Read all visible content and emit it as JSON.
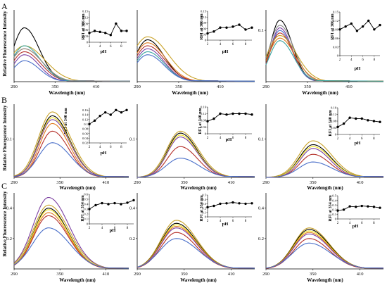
{
  "rows": [
    {
      "label": "A",
      "xlabel": "Wavelength (nm)",
      "ylabel": "Relative Fluorescence Intensity",
      "insets": [
        {
          "ylabel": "RFI at 306 nm",
          "xlabel": "pH",
          "xticks": [
            "2",
            "4",
            "6",
            "8"
          ],
          "yticks": [
            "0",
            "0.03",
            "0.06",
            "0.09",
            "0.12",
            "0.15"
          ]
        },
        {
          "ylabel": "RFI at 306 nm",
          "xlabel": "pH",
          "xticks": [
            "2",
            "4",
            "6",
            "8"
          ],
          "yticks": [
            "0",
            "0.03",
            "0.06",
            "0.09",
            "0.12",
            "0.15"
          ]
        },
        {
          "ylabel": "RFI at 306 nm",
          "xlabel": "pH",
          "xticks": [
            "2",
            "4",
            "6",
            "8"
          ],
          "yticks": [
            "0",
            "0.03",
            "0.06",
            "0.09",
            "0.12",
            "0.15"
          ]
        }
      ]
    },
    {
      "label": "B",
      "xlabel": "Wavelength (nm)",
      "ylabel": "Relative Fluorescence Intensity",
      "insets": [
        {
          "ylabel": "RFI at 340 nm",
          "xlabel": "pH",
          "xticks": [
            "2",
            "4",
            "6",
            "8"
          ],
          "yticks": [
            "0.02",
            "0.04",
            "0.06",
            "0.08",
            "0.1",
            "0.12",
            "0.14",
            "0.16"
          ]
        },
        {
          "ylabel": "RFI at 340 nm",
          "xlabel": "pH",
          "xticks": [
            "2",
            "4",
            "6",
            "8"
          ],
          "yticks": [
            "0",
            "0.04",
            "0.08",
            "0.12",
            "0.16"
          ]
        },
        {
          "ylabel": "RFI at 340 nm",
          "xlabel": "pH",
          "xticks": [
            "2",
            "4",
            "6",
            "8"
          ],
          "yticks": [
            "0",
            "0.04",
            "0.08",
            "0.12",
            "0.16"
          ]
        }
      ]
    },
    {
      "label": "C",
      "xlabel": "Wavelength (nm)",
      "ylabel": "Relative Fluorescence Intensity",
      "insets": [
        {
          "ylabel": "RFI at 334 nm",
          "xlabel": "pH",
          "xticks": [
            "2",
            "4",
            "6",
            "8"
          ],
          "yticks": [
            "0",
            "0.1",
            "0.2",
            "0.3",
            "0.4",
            "0.5",
            "0.6"
          ]
        },
        {
          "ylabel": "RFI at 334 nm",
          "xlabel": "pH",
          "xticks": [
            "2",
            "4",
            "6",
            "8"
          ],
          "yticks": [
            "0",
            "0.1",
            "0.2",
            "0.3",
            "0.4",
            "0.5"
          ]
        },
        {
          "ylabel": "RFI at 334 nm",
          "xlabel": "pH",
          "xticks": [
            "2",
            "4",
            "6",
            "8"
          ],
          "yticks": [
            "0",
            "0.1",
            "0.2",
            "0.3",
            "0.4",
            "0.5"
          ]
        }
      ]
    }
  ],
  "colors": {
    "black": "#000000",
    "yellow": "#f0e21c",
    "gold": "#c9a227",
    "orange": "#e07b1f",
    "red": "#b5302a",
    "purple": "#7b3fa0",
    "blue": "#4a6fc9",
    "teal": "#3aa5a0",
    "gray": "#8a8a8a",
    "darkred": "#8b1a1a"
  },
  "chart_data": [
    {
      "panel": "A1",
      "type": "line",
      "xlabel": "Wavelength (nm)",
      "ylabel": "Relative Fluorescence Intensity",
      "xticks": [
        290,
        350,
        410
      ],
      "xlim": [
        290,
        460
      ],
      "yticks": [],
      "ylim": [
        0,
        0.12
      ],
      "peak": 305,
      "series": [
        {
          "color": "black",
          "peak_value": 0.09,
          "width": 22
        },
        {
          "color": "gold",
          "peak_value": 0.06,
          "width": 30
        },
        {
          "color": "orange",
          "peak_value": 0.055,
          "width": 26
        },
        {
          "color": "red",
          "peak_value": 0.05,
          "width": 24
        },
        {
          "color": "purple",
          "peak_value": 0.045,
          "width": 22
        },
        {
          "color": "blue",
          "peak_value": 0.035,
          "width": 22
        },
        {
          "color": "teal",
          "peak_value": 0.06,
          "width": 24
        },
        {
          "color": "gray",
          "peak_value": 0.055,
          "width": 26
        }
      ],
      "inset": {
        "x": [
          2,
          3,
          4,
          5,
          6,
          7,
          8,
          9
        ],
        "y": [
          0.045,
          0.055,
          0.05,
          0.045,
          0.035,
          0.09,
          0.055,
          0.055
        ],
        "ylim": [
          0,
          0.15
        ]
      }
    },
    {
      "panel": "A2",
      "type": "line",
      "xlabel": "Wavelength (nm)",
      "ylabel": "",
      "xticks": [
        290,
        350,
        410
      ],
      "xlim": [
        290,
        460
      ],
      "yticks": [],
      "ylim": [
        0,
        0.12
      ],
      "peak": 305,
      "series": [
        {
          "color": "gold",
          "peak_value": 0.075,
          "width": 30
        },
        {
          "color": "black",
          "peak_value": 0.07,
          "width": 24
        },
        {
          "color": "orange",
          "peak_value": 0.065,
          "width": 26
        },
        {
          "color": "red",
          "peak_value": 0.06,
          "width": 25
        },
        {
          "color": "purple",
          "peak_value": 0.055,
          "width": 24
        },
        {
          "color": "teal",
          "peak_value": 0.05,
          "width": 24
        },
        {
          "color": "blue",
          "peak_value": 0.045,
          "width": 24
        }
      ],
      "inset": {
        "x": [
          2,
          3,
          4,
          5,
          6,
          7,
          8,
          9
        ],
        "y": [
          0.035,
          0.045,
          0.065,
          0.065,
          0.07,
          0.08,
          0.055,
          0.065
        ],
        "ylim": [
          0,
          0.15
        ]
      }
    },
    {
      "panel": "A3",
      "type": "line",
      "xlabel": "Wavelength (nm)",
      "ylabel": "",
      "xticks": [
        290,
        350,
        410
      ],
      "xlim": [
        290,
        460
      ],
      "yticks": [
        "0.1"
      ],
      "ylim": [
        0,
        0.14
      ],
      "peak": 310,
      "series": [
        {
          "color": "black",
          "peak_value": 0.12,
          "width": 18
        },
        {
          "color": "gray",
          "peak_value": 0.11,
          "width": 20
        },
        {
          "color": "purple",
          "peak_value": 0.105,
          "width": 18
        },
        {
          "color": "blue",
          "peak_value": 0.1,
          "width": 18
        },
        {
          "color": "red",
          "peak_value": 0.095,
          "width": 19
        },
        {
          "color": "gold",
          "peak_value": 0.09,
          "width": 24
        },
        {
          "color": "orange",
          "peak_value": 0.085,
          "width": 22
        },
        {
          "color": "teal",
          "peak_value": 0.08,
          "width": 20
        }
      ],
      "inset": {
        "x": [
          2,
          3,
          4,
          5,
          6,
          7,
          8,
          9
        ],
        "y": [
          0.09,
          0.1,
          0.11,
          0.085,
          0.1,
          0.12,
          0.09,
          0.105
        ],
        "ylim": [
          0,
          0.15
        ]
      }
    },
    {
      "panel": "B1",
      "type": "line",
      "xlabel": "Wavelength (nm)",
      "ylabel": "Relative Fluorescence Intensity",
      "xticks": [
        290,
        350,
        410
      ],
      "xlim": [
        290,
        440
      ],
      "yticks": [
        "0.1"
      ],
      "ylim": [
        0,
        0.19
      ],
      "peak": 340,
      "series": [
        {
          "color": "gold",
          "peak_value": 0.17,
          "width": 24
        },
        {
          "color": "black",
          "peak_value": 0.16,
          "width": 23
        },
        {
          "color": "yellow",
          "peak_value": 0.155,
          "width": 23
        },
        {
          "color": "purple",
          "peak_value": 0.15,
          "width": 23
        },
        {
          "color": "orange",
          "peak_value": 0.14,
          "width": 22
        },
        {
          "color": "red",
          "peak_value": 0.12,
          "width": 22
        },
        {
          "color": "blue",
          "peak_value": 0.09,
          "width": 24
        }
      ],
      "inset": {
        "x": [
          2,
          3,
          4,
          5,
          6,
          7,
          8,
          9
        ],
        "y": [
          0.1,
          0.115,
          0.135,
          0.15,
          0.14,
          0.16,
          0.15,
          0.16
        ],
        "ylim": [
          0.02,
          0.17
        ]
      }
    },
    {
      "panel": "B2",
      "type": "line",
      "xlabel": "Wavelength (nm)",
      "ylabel": "",
      "xticks": [
        290,
        350,
        410
      ],
      "xlim": [
        290,
        440
      ],
      "yticks": [
        "0.1"
      ],
      "ylim": [
        0,
        0.19
      ],
      "peak": 345,
      "series": [
        {
          "color": "gold",
          "peak_value": 0.12,
          "width": 23
        },
        {
          "color": "black",
          "peak_value": 0.115,
          "width": 22
        },
        {
          "color": "yellow",
          "peak_value": 0.11,
          "width": 22
        },
        {
          "color": "purple",
          "peak_value": 0.105,
          "width": 22
        },
        {
          "color": "red",
          "peak_value": 0.08,
          "width": 22
        },
        {
          "color": "blue",
          "peak_value": 0.05,
          "width": 24
        }
      ],
      "inset": {
        "x": [
          2,
          3,
          4,
          5,
          6,
          7,
          8,
          9
        ],
        "y": [
          0.075,
          0.09,
          0.12,
          0.115,
          0.12,
          0.12,
          0.12,
          0.115
        ],
        "ylim": [
          0,
          0.16
        ]
      }
    },
    {
      "panel": "B3",
      "type": "line",
      "xlabel": "Wavelength (nm)",
      "ylabel": "",
      "xticks": [
        290,
        350,
        410
      ],
      "xlim": [
        290,
        440
      ],
      "yticks": [
        "0.1"
      ],
      "ylim": [
        0,
        0.19
      ],
      "peak": 350,
      "series": [
        {
          "color": "gold",
          "peak_value": 0.095,
          "width": 24
        },
        {
          "color": "black",
          "peak_value": 0.085,
          "width": 23
        },
        {
          "color": "yellow",
          "peak_value": 0.08,
          "width": 23
        },
        {
          "color": "purple",
          "peak_value": 0.075,
          "width": 22
        },
        {
          "color": "red",
          "peak_value": 0.06,
          "width": 22
        },
        {
          "color": "blue",
          "peak_value": 0.04,
          "width": 24
        }
      ],
      "inset": {
        "x": [
          2,
          3,
          4,
          5,
          6,
          7,
          8,
          9
        ],
        "y": [
          0.045,
          0.065,
          0.1,
          0.095,
          0.095,
          0.085,
          0.08,
          0.075
        ],
        "ylim": [
          0,
          0.16
        ]
      }
    },
    {
      "panel": "C1",
      "type": "line",
      "xlabel": "Wavelength (nm)",
      "ylabel": "Relative Fluorescence Intensity",
      "xticks": [
        290,
        350,
        410
      ],
      "xlim": [
        290,
        440
      ],
      "yticks": [
        "0.2",
        "0.4"
      ],
      "ylim": [
        0,
        0.5
      ],
      "peak": 335,
      "series": [
        {
          "color": "purple",
          "peak_value": 0.47,
          "width": 27
        },
        {
          "color": "gold",
          "peak_value": 0.42,
          "width": 27
        },
        {
          "color": "black",
          "peak_value": 0.4,
          "width": 26
        },
        {
          "color": "yellow",
          "peak_value": 0.39,
          "width": 26
        },
        {
          "color": "orange",
          "peak_value": 0.37,
          "width": 26
        },
        {
          "color": "red",
          "peak_value": 0.35,
          "width": 26
        },
        {
          "color": "blue",
          "peak_value": 0.27,
          "width": 28
        }
      ],
      "inset": {
        "x": [
          2,
          3,
          4,
          5,
          6,
          7,
          8,
          9
        ],
        "y": [
          0.3,
          0.38,
          0.42,
          0.4,
          0.42,
          0.4,
          0.43,
          0.48
        ],
        "ylim": [
          0,
          0.6
        ]
      }
    },
    {
      "panel": "C2",
      "type": "line",
      "xlabel": "Wavelength (nm)",
      "ylabel": "",
      "xticks": [
        290,
        350,
        410
      ],
      "xlim": [
        290,
        440
      ],
      "yticks": [
        "0.2",
        "0.4"
      ],
      "ylim": [
        0,
        0.5
      ],
      "peak": 340,
      "series": [
        {
          "color": "gold",
          "peak_value": 0.32,
          "width": 26
        },
        {
          "color": "black",
          "peak_value": 0.3,
          "width": 26
        },
        {
          "color": "yellow",
          "peak_value": 0.29,
          "width": 26
        },
        {
          "color": "orange",
          "peak_value": 0.28,
          "width": 26
        },
        {
          "color": "purple",
          "peak_value": 0.27,
          "width": 26
        },
        {
          "color": "red",
          "peak_value": 0.24,
          "width": 26
        },
        {
          "color": "blue",
          "peak_value": 0.2,
          "width": 28
        }
      ],
      "inset": {
        "x": [
          2,
          3,
          4,
          5,
          6,
          7,
          8,
          9
        ],
        "y": [
          0.22,
          0.25,
          0.3,
          0.31,
          0.33,
          0.31,
          0.3,
          0.31
        ],
        "ylim": [
          0,
          0.5
        ]
      }
    },
    {
      "panel": "C3",
      "type": "line",
      "xlabel": "Wavelength (nm)",
      "ylabel": "",
      "xticks": [
        290,
        350,
        410
      ],
      "xlim": [
        290,
        440
      ],
      "yticks": [
        "0.2",
        "0.4"
      ],
      "ylim": [
        0,
        0.5
      ],
      "peak": 345,
      "series": [
        {
          "color": "gold",
          "peak_value": 0.27,
          "width": 26
        },
        {
          "color": "black",
          "peak_value": 0.26,
          "width": 26
        },
        {
          "color": "yellow",
          "peak_value": 0.25,
          "width": 26
        },
        {
          "color": "orange",
          "peak_value": 0.24,
          "width": 26
        },
        {
          "color": "purple",
          "peak_value": 0.23,
          "width": 26
        },
        {
          "color": "red",
          "peak_value": 0.2,
          "width": 26
        },
        {
          "color": "blue",
          "peak_value": 0.17,
          "width": 28
        }
      ],
      "inset": {
        "x": [
          2,
          3,
          4,
          5,
          6,
          7,
          8,
          9
        ],
        "y": [
          0.18,
          0.2,
          0.27,
          0.26,
          0.28,
          0.27,
          0.26,
          0.24
        ],
        "ylim": [
          0,
          0.5
        ]
      }
    }
  ]
}
